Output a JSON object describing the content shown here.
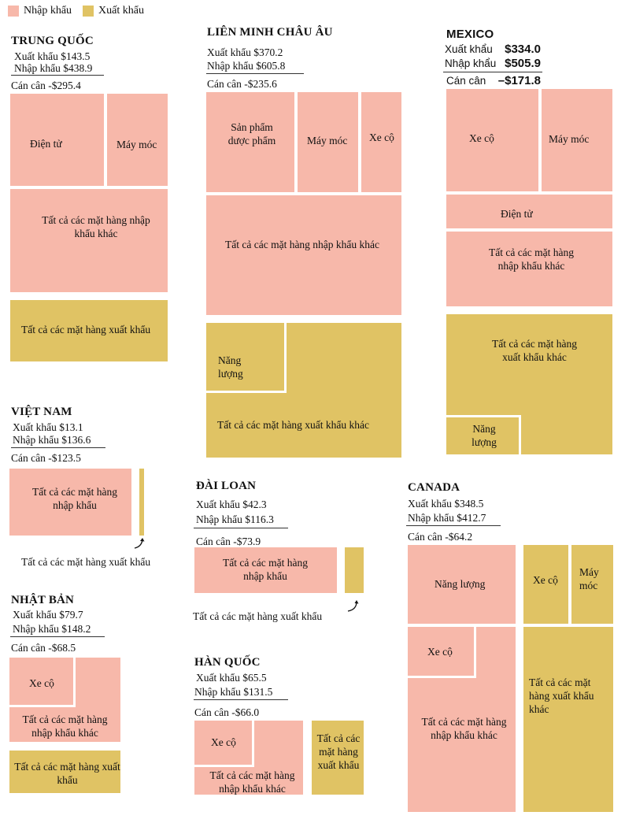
{
  "legend": {
    "import": "Nhập khẩu",
    "export": "Xuất khẩu"
  },
  "colors": {
    "import": "#F7B8AA",
    "export": "#E0C364"
  },
  "china": {
    "title": "TRUNG QUỐC",
    "exports": "Xuất khẩu $143.5",
    "imports": "Nhập khẩu $438.9",
    "balance": "Cán cân -$295.4",
    "cats": {
      "electronics": "Điện tử",
      "machinery": "Máy móc",
      "other_imports": "Tất cả các mặt hàng nhập khẩu khác",
      "all_exports": "Tất cả các mặt hàng xuất khẩu"
    }
  },
  "eu": {
    "title": "LIÊN MINH CHÂU ÂU",
    "exports": "Xuất khẩu $370.2",
    "imports": "Nhập khẩu $605.8",
    "balance": "Cán cân -$235.6",
    "cats": {
      "pharma": "Sản phẩm dược phẩm",
      "machinery": "Máy móc",
      "vehicles": "Xe cộ",
      "other_imports": "Tất cả các mặt hàng nhập khẩu khác",
      "energy": "Năng lượng",
      "other_exports": "Tất cả các mặt hàng xuất khẩu khác"
    }
  },
  "mexico": {
    "title": "MEXICO",
    "exports_label": "Xuất khẩu",
    "exports_value": "$334.0",
    "imports_label": "Nhập khẩu",
    "imports_value": "$505.9",
    "balance_label": "Cán cân",
    "balance_value": "–$171.8",
    "cats": {
      "vehicles": "Xe cộ",
      "machinery": "Máy móc",
      "electronics": "Điện tử",
      "other_imports": "Tất cả các mặt hàng nhập khẩu khác",
      "other_exports": "Tất cả các mặt hàng xuất khẩu khác",
      "energy": "Năng lượng"
    }
  },
  "vietnam": {
    "title": "VIỆT NAM",
    "exports": "Xuất khẩu $13.1",
    "imports": "Nhập khẩu $136.6",
    "balance": "Cán cân -$123.5",
    "cats": {
      "all_imports": "Tất cả các mặt hàng nhập khẩu",
      "all_exports": "Tất cả các mặt hàng xuất khẩu"
    }
  },
  "taiwan": {
    "title": "ĐÀI LOAN",
    "exports": "Xuất khẩu $42.3",
    "imports": "Nhập khẩu $116.3",
    "balance": "Cán cân -$73.9",
    "cats": {
      "all_imports": "Tất cả các mặt hàng nhập khẩu",
      "all_exports": "Tất cả các mặt hàng xuất khẩu"
    }
  },
  "canada": {
    "title": "CANADA",
    "exports": "Xuất khẩu $348.5",
    "imports": "Nhập khẩu $412.7",
    "balance": "Cán cân -$64.2",
    "cats": {
      "energy": "Năng lượng",
      "vehicles_exp": "Xe cộ",
      "machinery": "Máy móc",
      "vehicles_imp": "Xe cộ",
      "other_imports": "Tất cả các mặt hàng nhập khẩu khác",
      "other_exports": "Tất cả các mặt hàng xuất khẩu khác"
    }
  },
  "japan": {
    "title": "NHẬT BẢN",
    "exports": "Xuất khẩu $79.7",
    "imports": "Nhập khẩu $148.2",
    "balance": "Cán cân -$68.5",
    "cats": {
      "vehicles": "Xe cộ",
      "other_imports": "Tất cả các mặt hàng nhập khẩu khác",
      "all_exports": "Tất cả các mặt hàng xuất khẩu"
    }
  },
  "korea": {
    "title": "HÀN QUỐC",
    "exports": "Xuất khẩu $65.5",
    "imports": "Nhập khẩu $131.5",
    "balance": "Cán cân -$66.0",
    "cats": {
      "vehicles": "Xe cộ",
      "other_imports": "Tất cả các mặt hàng nhập khẩu khác",
      "all_exports": "Tất cả các mặt hàng xuất khẩu"
    }
  },
  "chart_data": {
    "type": "treemap",
    "units": "$",
    "series": [
      {
        "name": "Nhập khẩu"
      },
      {
        "name": "Xuất khẩu"
      }
    ],
    "countries": [
      {
        "name": "TRUNG QUỐC",
        "exports": 143.5,
        "imports": 438.9,
        "balance": -295.4
      },
      {
        "name": "LIÊN MINH CHÂU ÂU",
        "exports": 370.2,
        "imports": 605.8,
        "balance": -235.6
      },
      {
        "name": "MEXICO",
        "exports": 334.0,
        "imports": 505.9,
        "balance": -171.8
      },
      {
        "name": "VIỆT NAM",
        "exports": 13.1,
        "imports": 136.6,
        "balance": -123.5
      },
      {
        "name": "ĐÀI LOAN",
        "exports": 42.3,
        "imports": 116.3,
        "balance": -73.9
      },
      {
        "name": "CANADA",
        "exports": 348.5,
        "imports": 412.7,
        "balance": -64.2
      },
      {
        "name": "NHẬT BẢN",
        "exports": 79.7,
        "imports": 148.2,
        "balance": -68.5
      },
      {
        "name": "HÀN QUỐC",
        "exports": 65.5,
        "imports": 131.5,
        "balance": -66.0
      }
    ]
  }
}
